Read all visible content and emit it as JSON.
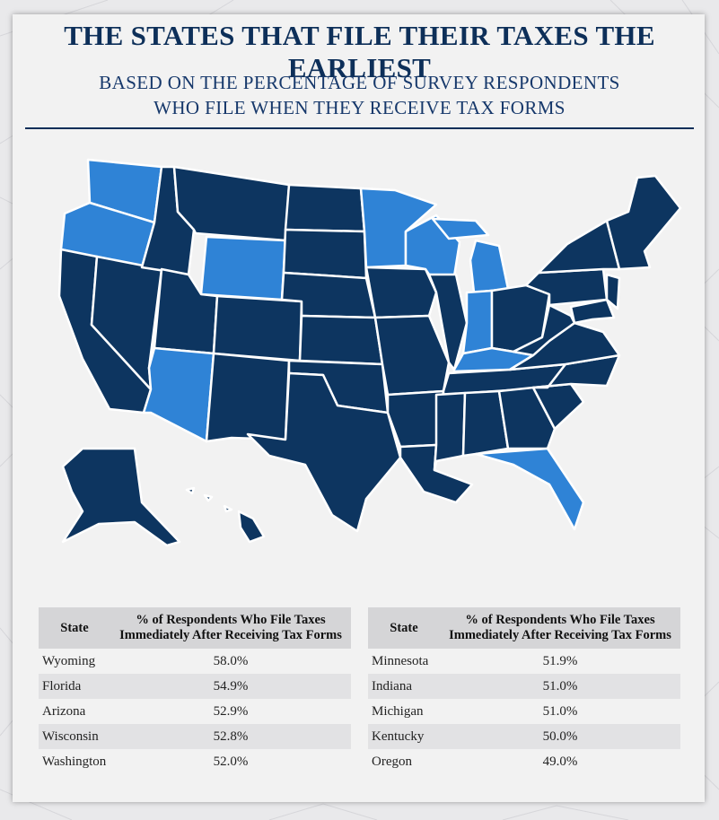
{
  "title": "THE STATES THAT FILE THEIR TAXES THE EARLIEST",
  "subtitle_line1": "BASED ON THE PERCENTAGE OF SURVEY RESPONDENTS",
  "subtitle_line2": "WHO FILE WHEN THEY RECEIVE TAX FORMS",
  "colors": {
    "highlight": "#2f83d6",
    "base": "#0d3560",
    "border": "#ffffff"
  },
  "map": {
    "highlighted_states": [
      "Wyoming",
      "Florida",
      "Arizona",
      "Wisconsin",
      "Washington",
      "Minnesota",
      "Indiana",
      "Michigan",
      "Kentucky",
      "Oregon"
    ]
  },
  "tables": {
    "header_state": "State",
    "header_pct_line1": "% of Respondents Who File Taxes",
    "header_pct_line2": "Immediately After Receiving Tax Forms",
    "left": [
      {
        "state": "Wyoming",
        "pct": "58.0%"
      },
      {
        "state": "Florida",
        "pct": "54.9%"
      },
      {
        "state": "Arizona",
        "pct": "52.9%"
      },
      {
        "state": "Wisconsin",
        "pct": "52.8%"
      },
      {
        "state": "Washington",
        "pct": "52.0%"
      }
    ],
    "right": [
      {
        "state": "Minnesota",
        "pct": "51.9%"
      },
      {
        "state": "Indiana",
        "pct": "51.0%"
      },
      {
        "state": "Michigan",
        "pct": "51.0%"
      },
      {
        "state": "Kentucky",
        "pct": "50.0%"
      },
      {
        "state": "Oregon",
        "pct": "49.0%"
      }
    ]
  }
}
